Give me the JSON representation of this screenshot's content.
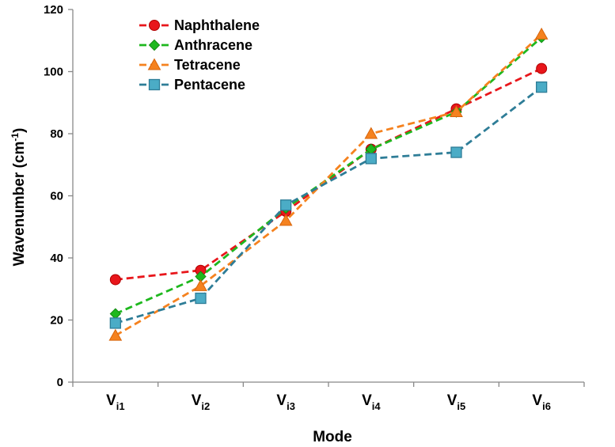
{
  "chart_data": {
    "type": "line",
    "categories": [
      {
        "base": "V",
        "sub": "i1"
      },
      {
        "base": "V",
        "sub": "i2"
      },
      {
        "base": "V",
        "sub": "i3"
      },
      {
        "base": "V",
        "sub": "i4"
      },
      {
        "base": "V",
        "sub": "i5"
      },
      {
        "base": "V",
        "sub": "i6"
      }
    ],
    "series": [
      {
        "name": "Naphthalene",
        "color": "#e8161b",
        "marker": "circle",
        "values": [
          33,
          36,
          55,
          75,
          88,
          101
        ]
      },
      {
        "name": "Anthracene",
        "color": "#1eb81e",
        "marker": "diamond",
        "values": [
          22,
          34,
          56,
          75,
          87,
          111
        ]
      },
      {
        "name": "Tetracene",
        "color": "#f5821f",
        "marker": "triangle",
        "values": [
          15,
          31,
          52,
          80,
          87,
          112
        ]
      },
      {
        "name": "Pentacene",
        "color": "#2e7d97",
        "fill": "#4bacc6",
        "marker": "square",
        "values": [
          19,
          27,
          57,
          72,
          74,
          95
        ]
      }
    ],
    "xlabel": "Mode",
    "ylabel": {
      "base": "Wavenumber (cm",
      "sup": "-1",
      "end": ")"
    },
    "ylim": [
      0,
      120
    ],
    "yticks": [
      0,
      20,
      40,
      60,
      80,
      100,
      120
    ],
    "grid": false,
    "legend": "top-left"
  }
}
